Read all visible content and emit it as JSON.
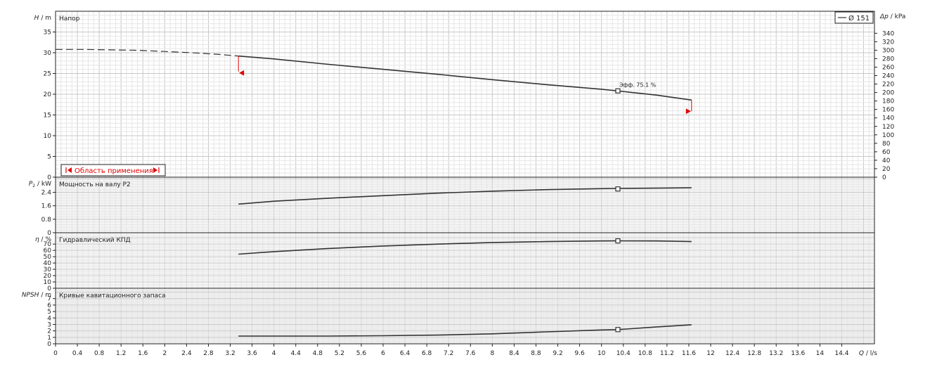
{
  "chart_data": [
    {
      "id": "head",
      "type": "line",
      "title": "Напор",
      "ylabel_main": "H",
      "ylabel_unit": "m",
      "ylabel_right_main": "Δp",
      "ylabel_right_unit": "kPa",
      "ylim": [
        0,
        40
      ],
      "yticks": [
        0,
        5,
        10,
        15,
        20,
        25,
        30,
        35
      ],
      "ylim_right": [
        0,
        392
      ],
      "yticks_right": [
        0,
        20,
        40,
        60,
        80,
        100,
        120,
        140,
        160,
        180,
        200,
        220,
        240,
        260,
        280,
        300,
        320,
        340
      ],
      "legend": {
        "label": "Ø 151",
        "position": "top-right"
      },
      "range_label": "Область применения",
      "op_label": "Эфф. 75.1 %",
      "operating_point": {
        "x": 10.3,
        "y": 20.8
      },
      "range_limits": {
        "min": {
          "x": 3.35,
          "y": 29.2
        },
        "max": {
          "x": 11.65,
          "y": 18.6
        }
      },
      "dashed": {
        "x": [
          0,
          0.5,
          1.0,
          1.5,
          2.0,
          2.5,
          3.0,
          3.35
        ],
        "y": [
          30.8,
          30.8,
          30.7,
          30.6,
          30.3,
          30.0,
          29.6,
          29.2
        ]
      },
      "series": [
        {
          "name": "Ø 151",
          "x": [
            3.35,
            4.0,
            5.0,
            6.0,
            7.0,
            8.0,
            9.0,
            10.0,
            10.3,
            11.0,
            11.65
          ],
          "y": [
            29.2,
            28.5,
            27.2,
            26.0,
            24.8,
            23.5,
            22.3,
            21.2,
            20.8,
            19.8,
            18.6
          ]
        }
      ]
    },
    {
      "id": "power",
      "type": "line",
      "title": "Мощность на валу P2",
      "ylabel_main": "P",
      "ylabel_sub": "2",
      "ylabel_unit": "kW",
      "ylim": [
        0,
        3.3
      ],
      "yticks": [
        0,
        0.8,
        1.6,
        2.4
      ],
      "operating_point": {
        "x": 10.3,
        "y": 2.6
      },
      "series": [
        {
          "name": "Ø 151",
          "x": [
            3.35,
            4.0,
            5.0,
            6.0,
            7.0,
            8.0,
            9.0,
            10.0,
            10.3,
            11.0,
            11.65
          ],
          "y": [
            1.7,
            1.87,
            2.05,
            2.2,
            2.35,
            2.47,
            2.56,
            2.62,
            2.63,
            2.65,
            2.67
          ]
        }
      ]
    },
    {
      "id": "efficiency",
      "type": "line",
      "title": "Гидравлический КПД",
      "ylabel_main": "η",
      "ylabel_unit": "%",
      "ylim": [
        0,
        88
      ],
      "yticks": [
        0,
        10,
        20,
        30,
        40,
        50,
        60,
        70
      ],
      "operating_point": {
        "x": 10.3,
        "y": 75.1
      },
      "series": [
        {
          "name": "Ø 151",
          "x": [
            3.35,
            4.0,
            5.0,
            6.0,
            7.0,
            8.0,
            9.0,
            10.0,
            10.3,
            11.0,
            11.65
          ],
          "y": [
            54,
            58,
            63,
            67,
            70,
            72.5,
            74,
            75,
            75.1,
            75,
            74
          ]
        }
      ]
    },
    {
      "id": "npsh",
      "type": "line",
      "title": "Кривые кавитационного запаса",
      "ylabel_main": "NPSH",
      "ylabel_unit": "m",
      "ylim": [
        0,
        8.6
      ],
      "yticks": [
        0,
        1,
        2,
        3,
        4,
        5,
        6,
        7
      ],
      "operating_point": {
        "x": 10.3,
        "y": 2.2
      },
      "series": [
        {
          "name": "Ø 151",
          "x": [
            3.35,
            4.0,
            5.0,
            6.0,
            7.0,
            8.0,
            9.0,
            10.0,
            10.3,
            11.0,
            11.65
          ],
          "y": [
            1.2,
            1.2,
            1.2,
            1.25,
            1.35,
            1.55,
            1.85,
            2.15,
            2.2,
            2.6,
            2.95
          ]
        }
      ]
    }
  ],
  "xaxis": {
    "label_main": "Q",
    "label_unit": "l/s",
    "xlim": [
      0,
      15.0
    ],
    "ticks": [
      0,
      0.4,
      0.8,
      1.2,
      1.6,
      2,
      2.4,
      2.8,
      3.2,
      3.6,
      4,
      4.4,
      4.8,
      5.2,
      5.6,
      6,
      6.4,
      6.8,
      7.2,
      7.6,
      8,
      8.4,
      8.8,
      9.2,
      9.6,
      10,
      10.4,
      10.8,
      11.2,
      11.6,
      12,
      12.4,
      12.8,
      13.2,
      13.6,
      14,
      14.4
    ]
  },
  "colors": {
    "curve": "#333333",
    "limit_marker": "#e00000",
    "grid_major": "#c8c8c8",
    "grid_minor": "#e6e6e6",
    "panel_bg_alt": "#f4f4f4"
  }
}
